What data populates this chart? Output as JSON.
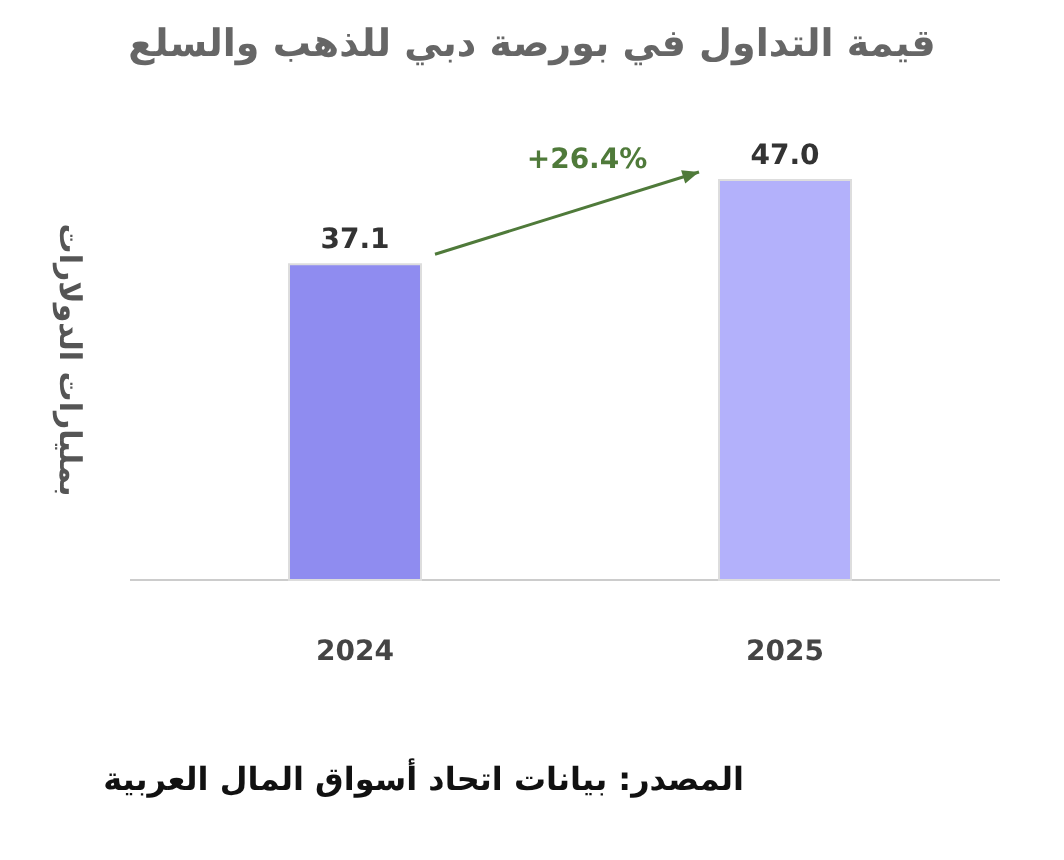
{
  "chart_data": {
    "type": "bar",
    "title": "قيمة التداول في بورصة دبي للذهب والسلع",
    "ylabel": "بمليارات الدولارات",
    "categories": [
      "2024",
      "2025"
    ],
    "values": [
      37.1,
      47.0
    ],
    "colors": [
      "#8f8cf0",
      "#b3b1fb"
    ],
    "value_labels": [
      "37.1",
      "47.0"
    ],
    "annotations": [
      "+26.4%",
      "المصدر: بيانات اتحاد أسواق المال العربية"
    ]
  }
}
